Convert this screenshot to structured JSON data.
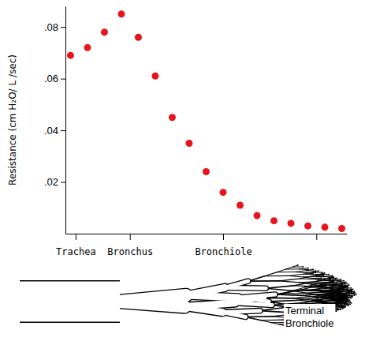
{
  "chart_data": {
    "type": "scatter",
    "y_label": "Resistance (cm H₂O/ L /sec)",
    "annotations": [
      "Terminal Bronchiole"
    ],
    "x": [
      0,
      1,
      2,
      3,
      4,
      5,
      6,
      7,
      8,
      9,
      10,
      11,
      12,
      13,
      14,
      15,
      16
    ],
    "values": [
      0.069,
      0.072,
      0.078,
      0.085,
      0.076,
      0.061,
      0.045,
      0.035,
      0.024,
      0.016,
      0.011,
      0.007,
      0.005,
      0.004,
      0.003,
      0.0025,
      0.002
    ],
    "color": "#e8141c",
    "marker": "circle",
    "xlim": [
      -0.3,
      16.3
    ],
    "xticks": [
      {
        "value": 0.3,
        "label": "Trachea"
      },
      {
        "value": 3.5,
        "label": "Bronchus"
      },
      {
        "value": 9,
        "label": "Bronchiole"
      },
      {
        "value": 14.5,
        "label": null
      }
    ],
    "ylim": [
      0,
      0.088
    ],
    "yticks": [
      {
        "value": 0.02,
        "label": ".02"
      },
      {
        "value": 0.04,
        "label": ".04"
      },
      {
        "value": 0.06,
        "label": ".06"
      },
      {
        "value": 0.08,
        "label": ".08"
      }
    ]
  }
}
